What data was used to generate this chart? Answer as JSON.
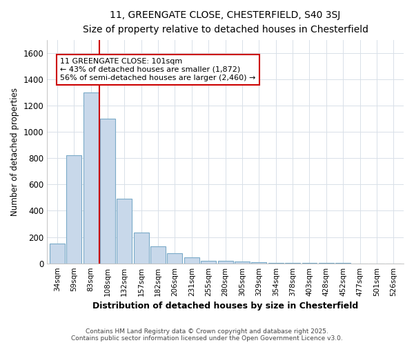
{
  "title": "11, GREENGATE CLOSE, CHESTERFIELD, S40 3SJ",
  "subtitle": "Size of property relative to detached houses in Chesterfield",
  "xlabel": "Distribution of detached houses by size in Chesterfield",
  "ylabel": "Number of detached properties",
  "bar_labels": [
    "34sqm",
    "59sqm",
    "83sqm",
    "108sqm",
    "132sqm",
    "157sqm",
    "182sqm",
    "206sqm",
    "231sqm",
    "255sqm",
    "280sqm",
    "305sqm",
    "329sqm",
    "354sqm",
    "378sqm",
    "403sqm",
    "428sqm",
    "452sqm",
    "477sqm",
    "501sqm",
    "526sqm"
  ],
  "bar_values": [
    148,
    822,
    1300,
    1100,
    490,
    235,
    130,
    75,
    45,
    20,
    20,
    15,
    10,
    5,
    2,
    1,
    1,
    1,
    0,
    0,
    0
  ],
  "bar_color": "#c8d8ea",
  "bar_edge_color": "#7aaac8",
  "property_line_x": 2.5,
  "property_line_color": "#cc0000",
  "annotation_text": "11 GREENGATE CLOSE: 101sqm\n← 43% of detached houses are smaller (1,872)\n56% of semi-detached houses are larger (2,460) →",
  "annotation_box_color": "#cc0000",
  "ylim": [
    0,
    1700
  ],
  "yticks": [
    0,
    200,
    400,
    600,
    800,
    1000,
    1200,
    1400,
    1600
  ],
  "bg_color": "#ffffff",
  "grid_color": "#d8e0e8",
  "footer_line1": "Contains HM Land Registry data © Crown copyright and database right 2025.",
  "footer_line2": "Contains public sector information licensed under the Open Government Licence v3.0."
}
